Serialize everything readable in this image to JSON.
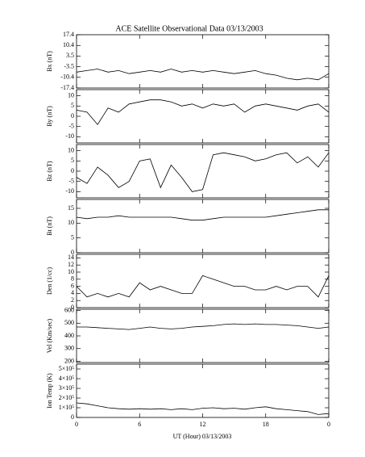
{
  "chart_data": [
    {
      "type": "line",
      "title": "ACE Satellite Observational Data   03/13/2003",
      "ylabel": "Bx (nT)",
      "color": "#000000",
      "x": [
        0,
        1,
        2,
        3,
        4,
        5,
        6,
        7,
        8,
        9,
        10,
        11,
        12,
        13,
        14,
        15,
        16,
        17,
        18,
        19,
        20,
        21,
        22,
        23,
        24
      ],
      "values": [
        -7,
        -6,
        -5,
        -7,
        -6,
        -8,
        -7,
        -6,
        -7,
        -5,
        -7,
        -6,
        -7,
        -6,
        -7,
        -8,
        -7,
        -6,
        -8,
        -9,
        -11,
        -12,
        -11,
        -12,
        -8
      ],
      "xlim": [
        0,
        24
      ],
      "ylim": [
        -17.4,
        17.4
      ],
      "yticks": [
        17.4,
        10.4,
        3.5,
        -3.5,
        -10.4,
        -17.4
      ]
    },
    {
      "type": "line",
      "ylabel": "By (nT)",
      "color": "#000000",
      "x": [
        0,
        1,
        2,
        3,
        4,
        5,
        6,
        7,
        8,
        9,
        10,
        11,
        12,
        13,
        14,
        15,
        16,
        17,
        18,
        19,
        20,
        21,
        22,
        23,
        24
      ],
      "values": [
        3,
        2,
        -4,
        4,
        2,
        6,
        7,
        8,
        8,
        7,
        5,
        6,
        4,
        6,
        5,
        6,
        2,
        5,
        6,
        5,
        4,
        3,
        5,
        6,
        2
      ],
      "xlim": [
        0,
        24
      ],
      "ylim": [
        -13,
        13
      ],
      "yticks": [
        10,
        5,
        0,
        -5,
        -10
      ]
    },
    {
      "type": "line",
      "ylabel": "Bz (nT)",
      "color": "#000000",
      "x": [
        0,
        1,
        2,
        3,
        4,
        5,
        6,
        7,
        8,
        9,
        10,
        11,
        12,
        13,
        14,
        15,
        16,
        17,
        18,
        19,
        20,
        21,
        22,
        23,
        24
      ],
      "values": [
        -3,
        -6,
        2,
        -2,
        -8,
        -5,
        5,
        6,
        -8,
        3,
        -3,
        -10,
        -9,
        8,
        9,
        8,
        7,
        5,
        6,
        8,
        9,
        4,
        7,
        2,
        9
      ],
      "xlim": [
        0,
        24
      ],
      "ylim": [
        -13,
        13
      ],
      "yticks": [
        10,
        5,
        0,
        -5,
        -10
      ]
    },
    {
      "type": "line",
      "ylabel": "Bt (nT)",
      "color": "#000000",
      "x": [
        0,
        1,
        2,
        3,
        4,
        5,
        6,
        7,
        8,
        9,
        10,
        11,
        12,
        13,
        14,
        15,
        16,
        17,
        18,
        19,
        20,
        21,
        22,
        23,
        24
      ],
      "values": [
        12,
        11.5,
        12,
        12,
        12.5,
        12,
        12,
        12,
        12,
        12,
        11.5,
        11,
        11,
        11.5,
        12,
        12,
        12,
        12,
        12,
        12.5,
        13,
        13.5,
        14,
        14.5,
        14.5
      ],
      "xlim": [
        0,
        24
      ],
      "ylim": [
        0,
        18
      ],
      "yticks": [
        15,
        10,
        5,
        0
      ]
    },
    {
      "type": "line",
      "ylabel": "Den (1/cc)",
      "color": "#000000",
      "x": [
        0,
        1,
        2,
        3,
        4,
        5,
        6,
        7,
        8,
        9,
        10,
        11,
        12,
        13,
        14,
        15,
        16,
        17,
        18,
        19,
        20,
        21,
        22,
        23,
        24
      ],
      "values": [
        6,
        3,
        4,
        3,
        4,
        3,
        7,
        5,
        6,
        5,
        4,
        4,
        9,
        8,
        7,
        6,
        6,
        5,
        5,
        6,
        5,
        6,
        6,
        3,
        9
      ],
      "xlim": [
        0,
        24
      ],
      "ylim": [
        0,
        15
      ],
      "yticks": [
        14,
        12,
        10,
        8,
        6,
        4,
        2,
        0
      ]
    },
    {
      "type": "line",
      "ylabel": "Vel (Km/sec)",
      "color": "#000000",
      "x": [
        0,
        1,
        2,
        3,
        4,
        5,
        6,
        7,
        8,
        9,
        10,
        11,
        12,
        13,
        14,
        15,
        16,
        17,
        18,
        19,
        20,
        21,
        22,
        23,
        24
      ],
      "values": [
        470,
        470,
        465,
        460,
        455,
        450,
        460,
        470,
        460,
        455,
        460,
        470,
        475,
        480,
        490,
        495,
        490,
        495,
        490,
        490,
        485,
        480,
        470,
        460,
        470
      ],
      "xlim": [
        0,
        24
      ],
      "ylim": [
        190,
        610
      ],
      "yticks": [
        600,
        500,
        400,
        300,
        200
      ]
    },
    {
      "type": "line",
      "ylabel": "Ion Temp (K)",
      "xlabel": "UT (Hour)   03/13/2003",
      "color": "#000000",
      "x": [
        0,
        1,
        2,
        3,
        4,
        5,
        6,
        7,
        8,
        9,
        10,
        11,
        12,
        13,
        14,
        15,
        16,
        17,
        18,
        19,
        20,
        21,
        22,
        23,
        24
      ],
      "values": [
        150000,
        140000,
        120000,
        100000,
        90000,
        85000,
        90000,
        85000,
        90000,
        80000,
        90000,
        80000,
        95000,
        100000,
        90000,
        95000,
        85000,
        100000,
        110000,
        90000,
        80000,
        70000,
        60000,
        30000,
        40000
      ],
      "xlim": [
        0,
        24
      ],
      "ylim": [
        0,
        550000
      ],
      "yticks": [
        {
          "value": 500000,
          "label": "5×10⁵"
        },
        {
          "value": 400000,
          "label": "4×10⁵"
        },
        {
          "value": 300000,
          "label": "3×10⁵"
        },
        {
          "value": 200000,
          "label": "2×10⁵"
        },
        {
          "value": 100000,
          "label": "1×10⁵"
        },
        0
      ],
      "xticks": [
        0,
        6,
        12,
        18,
        {
          "value": 24,
          "label": "0"
        }
      ]
    }
  ]
}
